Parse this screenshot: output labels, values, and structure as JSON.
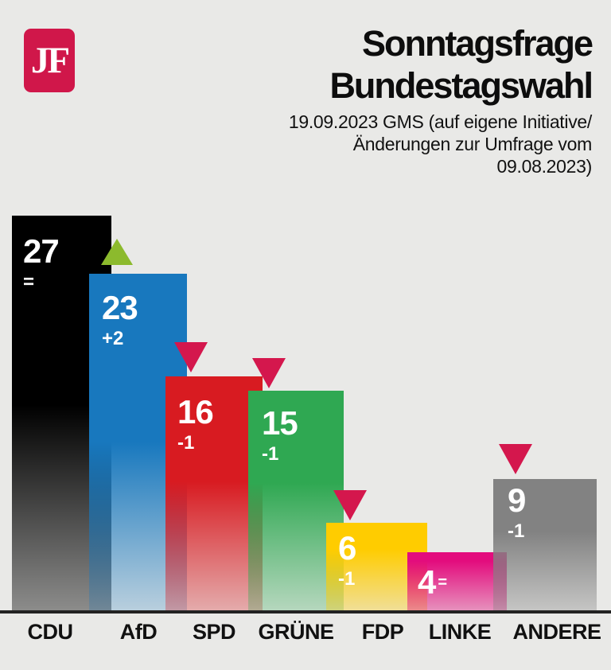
{
  "brand": {
    "logo_text": "JF",
    "logo_color": "#d0174a"
  },
  "header": {
    "title_line1": "Sonntagsfrage",
    "title_line2": "Bundestagswahl",
    "subtitle_lines": [
      "19.09.2023 GMS (auf eigene Initiative/",
      "Änderungen zur Umfrage vom",
      "09.08.2023)"
    ]
  },
  "chart_data": {
    "type": "bar",
    "title": "Sonntagsfrage Bundestagswahl",
    "subtitle": "19.09.2023 GMS (auf eigene Initiative/Änderungen zur Umfrage vom 09.08.2023)",
    "categories": [
      "CDU",
      "AfD",
      "SPD",
      "GRÜNE",
      "FDP",
      "LINKE",
      "ANDERE"
    ],
    "values": [
      27,
      23,
      16,
      15,
      6,
      4,
      9
    ],
    "changes": [
      "=",
      "+2",
      "-1",
      "-1",
      "-1",
      "=",
      "-1"
    ],
    "trend": [
      "equal",
      "up",
      "down",
      "down",
      "down",
      "equal",
      "down"
    ],
    "bar_colors": [
      "#000000",
      "#1878be",
      "#d81b21",
      "#2fa852",
      "#ffcc00",
      "#e30c7d",
      "#828282"
    ],
    "value_label_color": "#ffffff",
    "arrow_up_color": "#8cba2d",
    "arrow_down_color": "#d4174d",
    "background_color": "#e9e9e7",
    "ylim": [
      0,
      27
    ],
    "grid": false,
    "legend": false
  }
}
